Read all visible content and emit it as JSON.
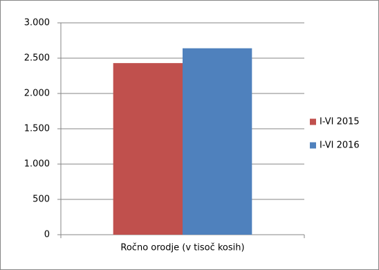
{
  "chart_data": {
    "type": "bar",
    "categories": [
      "Ročno orodje (v tisoč kosih)"
    ],
    "series": [
      {
        "name": "I-VI 2015",
        "color": "#c0504d",
        "values": [
          2430
        ]
      },
      {
        "name": "I-VI 2016",
        "color": "#4f81bd",
        "values": [
          2640
        ]
      }
    ],
    "ylim": [
      0,
      3000
    ],
    "yticks": [
      0,
      500,
      {
        "value": 1000,
        "label": "1.000"
      },
      {
        "value": 1500,
        "label": "1.500"
      },
      {
        "value": 2000,
        "label": "2.000"
      },
      {
        "value": 2500,
        "label": "2.500"
      },
      {
        "value": 3000,
        "label": "3.000"
      }
    ],
    "grid": true,
    "legend": "right"
  }
}
